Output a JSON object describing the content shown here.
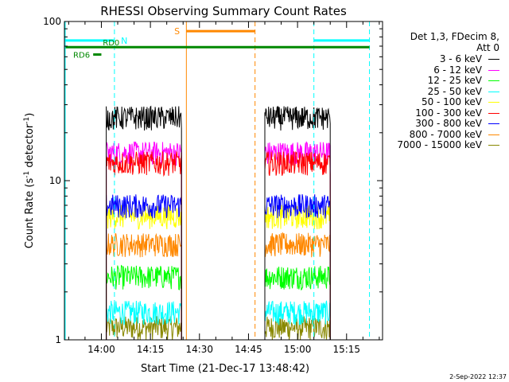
{
  "chart_data": {
    "type": "line",
    "title": "RHESSI Observing Summary Count Rates",
    "xlabel": "Start Time (21-Dec-17 13:48:42)",
    "ylabel": "Count Rate (s",
    "ylabel_sup": "-1",
    "ylabel_rest": " detector",
    "ylabel_sup2": "-1",
    "ylabel_close": ")",
    "yscale": "log",
    "ylim": [
      1,
      100
    ],
    "xlim": [
      "13:48:42",
      "15:26:00"
    ],
    "x_ticks": [
      "14:00",
      "14:15",
      "14:30",
      "14:45",
      "15:00",
      "15:15"
    ],
    "y_ticks": [
      "1",
      "10",
      "100"
    ],
    "legend_header": [
      "Det 1,3, FDecim 8,",
      "Att 0"
    ],
    "series": [
      {
        "name": "3 - 6 keV",
        "color": "#000000",
        "level": 25
      },
      {
        "name": "6 - 12 keV",
        "color": "#ff00ff",
        "level": 15
      },
      {
        "name": "12 - 25 keV",
        "color": "#00ff00",
        "level": 2.5
      },
      {
        "name": "25 - 50 keV",
        "color": "#00ffff",
        "level": 1.5
      },
      {
        "name": "50 - 100 keV",
        "color": "#ffff00",
        "level": 6
      },
      {
        "name": "100 - 300 keV",
        "color": "#ff0000",
        "level": 13
      },
      {
        "name": "300 - 800 keV",
        "color": "#0000ff",
        "level": 7
      },
      {
        "name": "800 - 7000 keV",
        "color": "#ff8800",
        "level": 4
      },
      {
        "name": "7000 - 15000 keV",
        "color": "#888800",
        "level": 1.2
      }
    ],
    "data_intervals": [
      [
        "14:01:30",
        "14:24:30"
      ],
      [
        "14:50:00",
        "15:10:00"
      ]
    ],
    "flag_bars": [
      {
        "label": "N",
        "color": "#00ffff",
        "intervals": [
          [
            "13:48:42",
            "14:04:00"
          ],
          [
            "15:05:00",
            "15:22:00"
          ]
        ],
        "level": 76,
        "dashed_at": [
          "14:04:00",
          "15:05:00",
          "15:22:00"
        ]
      },
      {
        "label": "S",
        "color": "#ff8800",
        "intervals": [
          [
            "14:26:00",
            "14:47:00"
          ]
        ],
        "level": 87,
        "dashed_at": [
          "14:26:00",
          "14:47:00"
        ]
      },
      {
        "label": "RD0",
        "color": "#008800",
        "intervals": [
          [
            "13:48:42",
            "15:22:00"
          ]
        ],
        "level": 69
      },
      {
        "label": "RD6",
        "color": "#008800",
        "intervals": [
          [
            "13:57:30",
            "14:00:00"
          ]
        ],
        "level": 62
      }
    ]
  },
  "footer": "2-Sep-2022 12:37"
}
